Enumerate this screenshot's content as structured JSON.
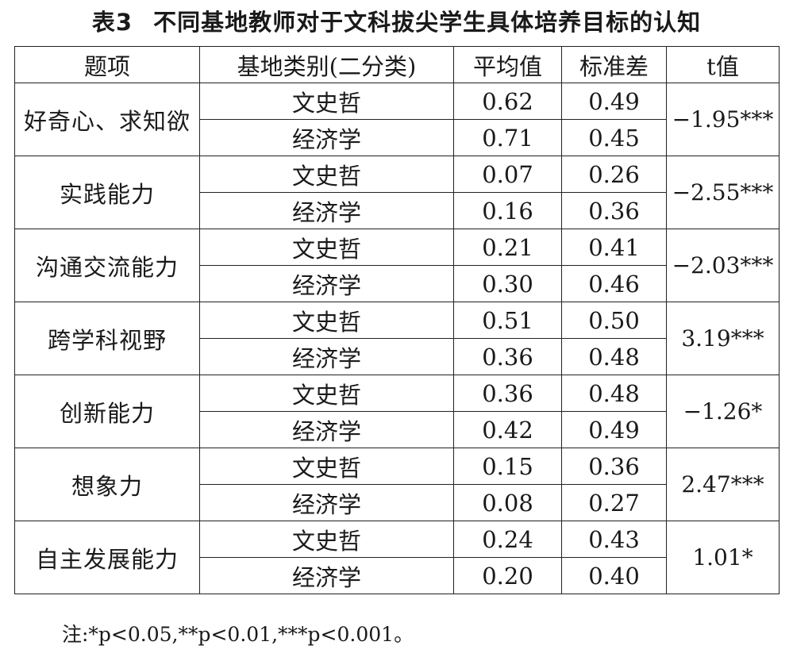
{
  "title": {
    "number": "表3",
    "text": "不同基地教师对于文科拔尖学生具体培养目标的认知"
  },
  "table": {
    "headers": [
      "题项",
      "基地类别(二分类)",
      "平均值",
      "标准差",
      "t值"
    ],
    "groups": [
      {
        "item": "好奇心、求知欲",
        "t": "−1.95***",
        "rows": [
          {
            "category": "文史哲",
            "mean": "0.62",
            "sd": "0.49"
          },
          {
            "category": "经济学",
            "mean": "0.71",
            "sd": "0.45"
          }
        ]
      },
      {
        "item": "实践能力",
        "t": "−2.55***",
        "rows": [
          {
            "category": "文史哲",
            "mean": "0.07",
            "sd": "0.26"
          },
          {
            "category": "经济学",
            "mean": "0.16",
            "sd": "0.36"
          }
        ]
      },
      {
        "item": "沟通交流能力",
        "t": "−2.03***",
        "rows": [
          {
            "category": "文史哲",
            "mean": "0.21",
            "sd": "0.41"
          },
          {
            "category": "经济学",
            "mean": "0.30",
            "sd": "0.46"
          }
        ]
      },
      {
        "item": "跨学科视野",
        "t": "3.19***",
        "rows": [
          {
            "category": "文史哲",
            "mean": "0.51",
            "sd": "0.50"
          },
          {
            "category": "经济学",
            "mean": "0.36",
            "sd": "0.48"
          }
        ]
      },
      {
        "item": "创新能力",
        "t": "−1.26*",
        "rows": [
          {
            "category": "文史哲",
            "mean": "0.36",
            "sd": "0.48"
          },
          {
            "category": "经济学",
            "mean": "0.42",
            "sd": "0.49"
          }
        ]
      },
      {
        "item": "想象力",
        "t": "2.47***",
        "rows": [
          {
            "category": "文史哲",
            "mean": "0.15",
            "sd": "0.36"
          },
          {
            "category": "经济学",
            "mean": "0.08",
            "sd": "0.27"
          }
        ]
      },
      {
        "item": "自主发展能力",
        "t": "1.01*",
        "rows": [
          {
            "category": "文史哲",
            "mean": "0.24",
            "sd": "0.43"
          },
          {
            "category": "经济学",
            "mean": "0.20",
            "sd": "0.40"
          }
        ]
      }
    ]
  },
  "note": "注:*p<0.05,**p<0.01,***p<0.001。"
}
